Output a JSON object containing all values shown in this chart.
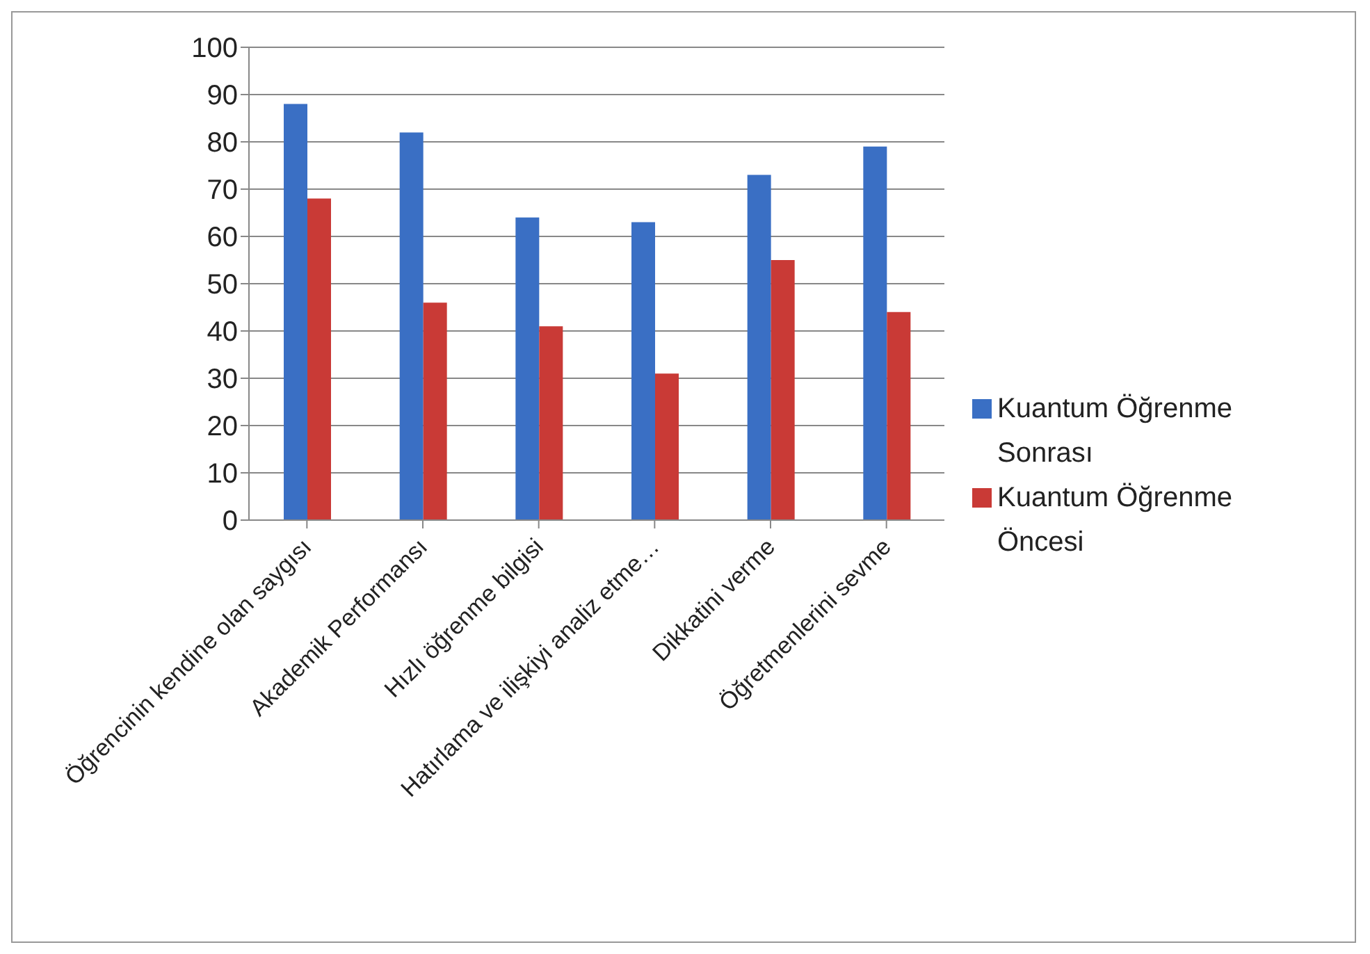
{
  "chart_data": {
    "type": "bar",
    "categories": [
      "Öğrencinin kendine olan saygısı",
      "Akademik Performansı",
      "Hızlı öğrenme bilgisi",
      "Hatırlama ve ilişkiyi analiz etme…",
      "Dikkatini verme",
      "Öğretmenlerini sevme"
    ],
    "series": [
      {
        "name": "Kuantum Öğrenme Sonrası",
        "color": "#3a6fc4",
        "values": [
          88,
          82,
          64,
          63,
          73,
          79
        ]
      },
      {
        "name": "Kuantum Öğrenme Öncesi",
        "color": "#c93a36",
        "values": [
          68,
          46,
          41,
          31,
          55,
          44
        ]
      }
    ],
    "ylim": [
      0,
      100
    ],
    "yticks": [
      0,
      10,
      20,
      30,
      40,
      50,
      60,
      70,
      80,
      90,
      100
    ],
    "grid": "y",
    "legend": "right"
  }
}
